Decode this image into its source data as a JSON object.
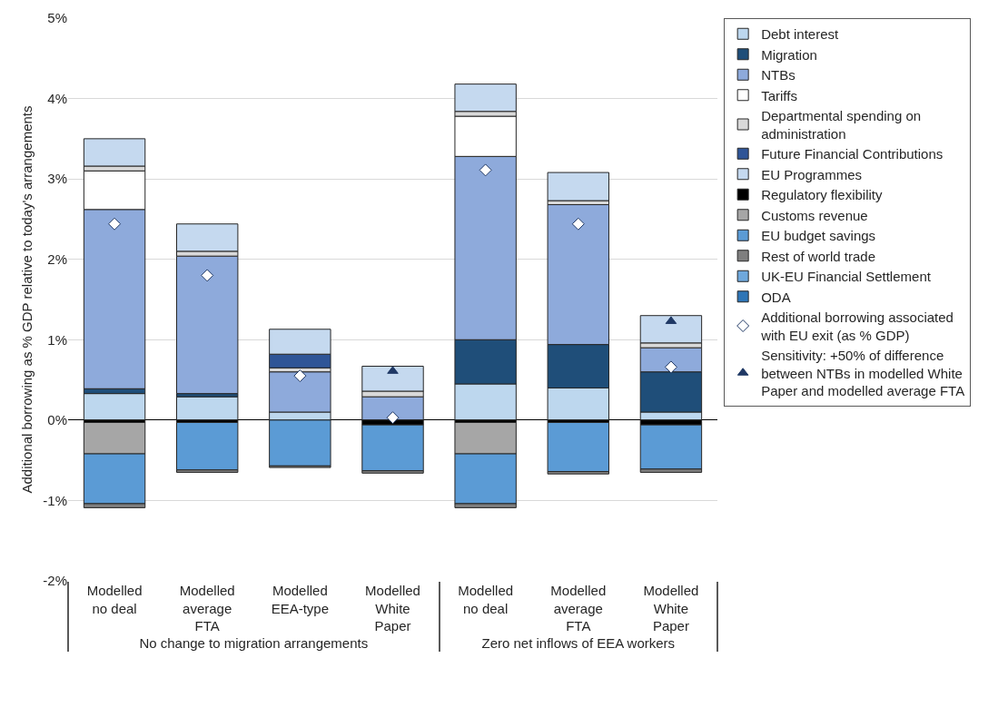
{
  "chart_data": {
    "type": "bar",
    "stacked": true,
    "ylabel": "Additional borrowing as % GDP relative to today's arrangements",
    "categories": [
      "Modelled no deal",
      "Modelled average FTA",
      "Modelled EEA-type",
      "Modelled White Paper",
      "Modelled no deal",
      "Modelled average FTA",
      "Modelled White Paper"
    ],
    "series": [
      {
        "name": "Debt interest",
        "color": "#bdd7ee",
        "values": [
          0.33,
          0.29,
          0.1,
          null,
          0.45,
          0.4,
          0.1
        ]
      },
      {
        "name": "Migration",
        "color": "#1f4e79",
        "values": [
          0.06,
          0.04,
          null,
          null,
          0.55,
          0.54,
          0.5
        ]
      },
      {
        "name": "NTBs",
        "color": "#8eaadb",
        "values": [
          2.23,
          1.71,
          0.5,
          0.29,
          2.28,
          1.74,
          0.3
        ]
      },
      {
        "name": "Tariffs",
        "color": "#ffffff",
        "values": [
          0.48,
          null,
          null,
          null,
          0.5,
          null,
          null
        ]
      },
      {
        "name": "Departmental spending on administration",
        "color": "#d9d9d9",
        "values": [
          0.06,
          0.06,
          0.05,
          0.07,
          0.06,
          0.05,
          0.06
        ]
      },
      {
        "name": "Future Financial Contributions",
        "color": "#2f5597",
        "values": [
          null,
          null,
          0.17,
          null,
          null,
          null,
          null
        ]
      },
      {
        "name": "EU Programmes",
        "color": "#c5d9ef",
        "values": [
          0.34,
          0.34,
          0.31,
          0.31,
          0.34,
          0.35,
          0.34
        ]
      },
      {
        "name": "Regulatory flexibility",
        "color": "#000000",
        "values": [
          -0.03,
          -0.03,
          null,
          -0.06,
          -0.03,
          -0.03,
          -0.06
        ]
      },
      {
        "name": "Customs revenue",
        "color": "#a6a6a6",
        "values": [
          -0.39,
          null,
          null,
          null,
          -0.39,
          null,
          null
        ]
      },
      {
        "name": "EU budget savings",
        "color": "#5b9bd5",
        "values": [
          -0.62,
          -0.59,
          -0.57,
          -0.57,
          -0.62,
          -0.61,
          -0.55
        ]
      },
      {
        "name": "Rest of world trade",
        "color": "#7f7f7f",
        "values": [
          -0.05,
          -0.03,
          -0.02,
          -0.03,
          -0.05,
          -0.03,
          -0.04
        ]
      },
      {
        "name": "UK-EU Financial Settlement",
        "color": "#6fa8dc",
        "values": [
          null,
          null,
          null,
          null,
          null,
          null,
          null
        ]
      },
      {
        "name": "ODA",
        "color": "#2e75b6",
        "values": [
          null,
          null,
          null,
          null,
          null,
          null,
          null
        ]
      },
      {
        "name": "Additional borrowing associated with EU exit (as % GDP)",
        "type": "scatter",
        "marker": "diamond",
        "color": "#ffffff",
        "values": [
          2.44,
          1.8,
          0.55,
          0.03,
          3.11,
          2.44,
          0.66
        ]
      },
      {
        "name": "Sensitivity: +50% of difference between NTBs in modelled White Paper and modelled average FTA",
        "type": "scatter",
        "marker": "triangle",
        "color": "#1f3864",
        "values": [
          null,
          null,
          null,
          0.61,
          null,
          null,
          1.23
        ]
      }
    ],
    "ylim": [
      -2,
      5
    ],
    "yticks": [
      {
        "value": -2,
        "label": "-2%"
      },
      {
        "value": -1,
        "label": "-1%"
      },
      {
        "value": 0,
        "label": "0%"
      },
      {
        "value": 1,
        "label": "1%"
      },
      {
        "value": 2,
        "label": "2%"
      },
      {
        "value": 3,
        "label": "3%"
      },
      {
        "value": 4,
        "label": "4%"
      },
      {
        "value": 5,
        "label": "5%"
      }
    ],
    "grid": "y",
    "legend": "right",
    "annotations": [
      "No change to migration arrangements",
      "Zero net inflows of EEA workers"
    ]
  }
}
